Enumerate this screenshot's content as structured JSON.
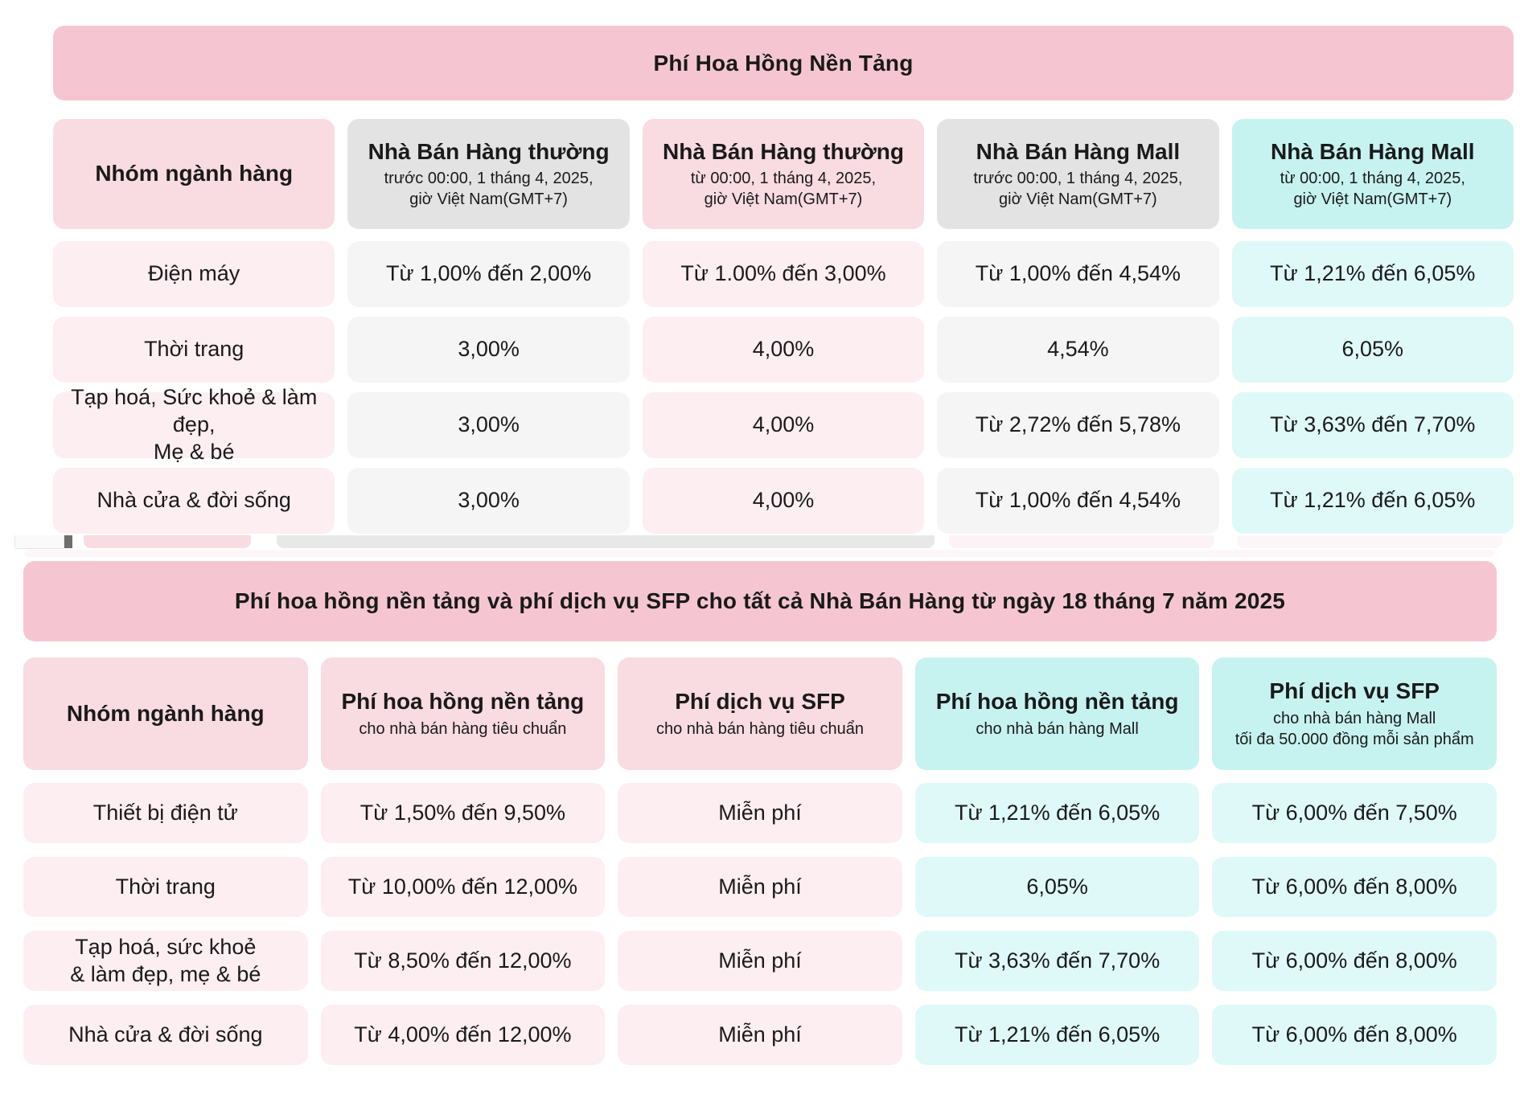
{
  "colors": {
    "banner-pink": "#f5c6d1",
    "header-pink": "#f9dbe2",
    "cell-pink": "#fdeef1",
    "header-gray": "#e3e3e4",
    "cell-gray": "#f5f5f6",
    "header-cyan": "#c6f3f0",
    "cell-cyan": "#def9f8",
    "text": "#1a1a1a"
  },
  "table1": {
    "title": "Phí Hoa Hồng Nền Tảng",
    "headers": [
      {
        "label": "Nhóm ngành hàng"
      },
      {
        "label": "Nhà Bán Hàng thường",
        "sub": "trước 00:00, 1 tháng 4, 2025,\ngiờ Việt Nam(GMT+7)"
      },
      {
        "label": "Nhà Bán Hàng thường",
        "sub": "từ 00:00, 1 tháng 4, 2025,\ngiờ Việt Nam(GMT+7)"
      },
      {
        "label": "Nhà Bán Hàng Mall",
        "sub": "trước 00:00, 1 tháng 4, 2025,\ngiờ Việt Nam(GMT+7)"
      },
      {
        "label": "Nhà Bán Hàng Mall",
        "sub": "từ 00:00, 1 tháng 4, 2025,\ngiờ Việt Nam(GMT+7)"
      }
    ],
    "rows": [
      {
        "category": "Điện máy",
        "values": [
          "Từ 1,00% đến 2,00%",
          "Từ 1.00% đến 3,00%",
          "Từ 1,00% đến 4,54%",
          "Từ 1,21% đến 6,05%"
        ]
      },
      {
        "category": "Thời trang",
        "values": [
          "3,00%",
          "4,00%",
          "4,54%",
          "6,05%"
        ]
      },
      {
        "category": "Tạp hoá, Sức khoẻ & làm đẹp,\nMẹ & bé",
        "values": [
          "3,00%",
          "4,00%",
          "Từ 2,72% đến 5,78%",
          "Từ 3,63% đến 7,70%"
        ]
      },
      {
        "category": "Nhà cửa & đời sống",
        "values": [
          "3,00%",
          "4,00%",
          "Từ 1,00% đến 4,54%",
          "Từ 1,21% đến 6,05%"
        ]
      }
    ]
  },
  "table2": {
    "title": "Phí hoa hồng nền tảng và phí dịch vụ SFP cho tất cả Nhà Bán Hàng từ ngày 18 tháng 7 năm 2025",
    "headers": [
      {
        "label": "Nhóm ngành hàng"
      },
      {
        "label": "Phí hoa hồng nền tảng",
        "sub": "cho nhà bán hàng tiêu chuẩn"
      },
      {
        "label": "Phí dịch vụ SFP",
        "sub": "cho nhà bán hàng tiêu chuẩn"
      },
      {
        "label": "Phí hoa hồng nền tảng",
        "sub": "cho nhà bán hàng Mall"
      },
      {
        "label": "Phí dịch vụ SFP",
        "sub": "cho nhà bán hàng Mall\ntối đa 50.000 đồng mỗi sản phẩm"
      }
    ],
    "rows": [
      {
        "category": "Thiết bị điện tử",
        "values": [
          "Từ 1,50% đến 9,50%",
          "Miễn phí",
          "Từ 1,21% đến 6,05%",
          "Từ 6,00% đến 7,50%"
        ]
      },
      {
        "category": "Thời trang",
        "values": [
          "Từ 10,00% đến 12,00%",
          "Miễn phí",
          "6,05%",
          "Từ 6,00% đến 8,00%"
        ]
      },
      {
        "category": "Tạp hoá, sức khoẻ\n& làm đẹp, mẹ & bé",
        "values": [
          "Từ 8,50% đến 12,00%",
          "Miễn phí",
          "Từ 3,63% đến 7,70%",
          "Từ 6,00% đến 8,00%"
        ]
      },
      {
        "category": "Nhà cửa & đời sống",
        "values": [
          "Từ 4,00% đến 12,00%",
          "Miễn phí",
          "Từ 1,21% đến 6,05%",
          "Từ 6,00% đến 8,00%"
        ]
      }
    ]
  }
}
